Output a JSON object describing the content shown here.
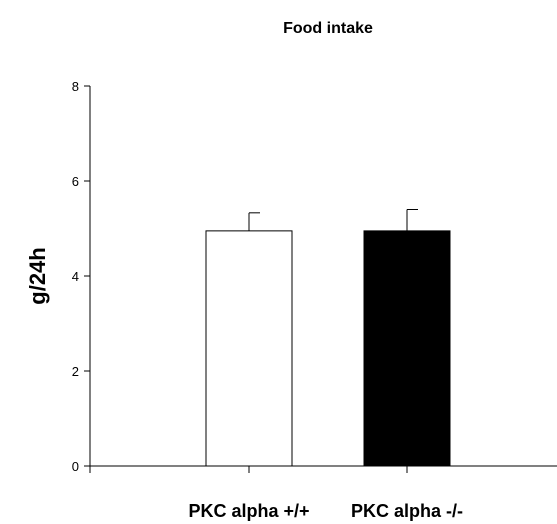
{
  "chart_data": {
    "type": "bar",
    "title": "Food intake",
    "xlabel": "",
    "ylabel": "g/24h",
    "ylim": [
      0,
      8
    ],
    "yticks": [
      "0",
      "2",
      "4",
      "6",
      "8"
    ],
    "categories": [
      "PKC alpha +/+",
      "PKC alpha -/-"
    ],
    "values": [
      4.95,
      4.95
    ],
    "errors": [
      0.38,
      0.45
    ],
    "bar_colors": [
      "#ffffff",
      "#000000"
    ],
    "bar_edge_color": "#000000",
    "grid": false,
    "legend": "none"
  }
}
